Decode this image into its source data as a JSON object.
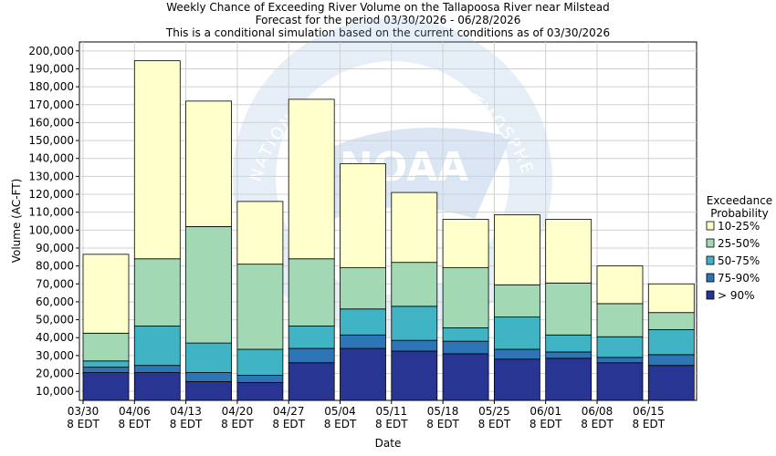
{
  "chart_data": {
    "type": "bar",
    "stacked": true,
    "title": [
      "Weekly Chance of Exceeding River Volume on the Tallapoosa River near Milstead",
      "Forecast for the period 03/30/2026 - 06/28/2026",
      "This is a conditional simulation based on the current conditions as of 03/30/2026"
    ],
    "xlabel": "Date",
    "ylabel": "Volume (AC-FT)",
    "ylim": [
      5000,
      205000
    ],
    "yticks": [
      "10,000",
      "20,000",
      "30,000",
      "40,000",
      "50,000",
      "60,000",
      "70,000",
      "80,000",
      "90,000",
      "100,000",
      "110,000",
      "120,000",
      "130,000",
      "140,000",
      "150,000",
      "160,000",
      "170,000",
      "180,000",
      "190,000",
      "200,000"
    ],
    "xticks": [
      [
        "03/30",
        "8 EDT"
      ],
      [
        "04/06",
        "8 EDT"
      ],
      [
        "04/13",
        "8 EDT"
      ],
      [
        "04/20",
        "8 EDT"
      ],
      [
        "04/27",
        "8 EDT"
      ],
      [
        "05/04",
        "8 EDT"
      ],
      [
        "05/11",
        "8 EDT"
      ],
      [
        "05/18",
        "8 EDT"
      ],
      [
        "05/25",
        "8 EDT"
      ],
      [
        "06/01",
        "8 EDT"
      ],
      [
        "06/08",
        "8 EDT"
      ],
      [
        "06/15",
        "8 EDT"
      ]
    ],
    "legend_title": [
      "Exceedance",
      "Probability"
    ],
    "series": [
      {
        "name": "> 90%",
        "color": "#283593",
        "tops": [
          20500,
          20500,
          15500,
          15000,
          26000,
          34000,
          32500,
          31000,
          28000,
          28500,
          26000,
          24500
        ]
      },
      {
        "name": "75-90%",
        "color": "#2e75b6",
        "tops": [
          23500,
          24500,
          20500,
          19000,
          34000,
          41500,
          38500,
          38000,
          33500,
          32000,
          29000,
          30500
        ]
      },
      {
        "name": "50-75%",
        "color": "#40b3c4",
        "tops": [
          27000,
          46500,
          37000,
          33500,
          46500,
          56000,
          57500,
          45500,
          51500,
          41500,
          40500,
          44500
        ]
      },
      {
        "name": "25-50%",
        "color": "#a2d9b4",
        "tops": [
          42500,
          84000,
          102000,
          81000,
          84000,
          79000,
          82000,
          79000,
          69500,
          70500,
          59000,
          54000
        ]
      },
      {
        "name": "10-25%",
        "color": "#ffffcc",
        "tops": [
          86500,
          194500,
          172000,
          116000,
          173000,
          137000,
          121000,
          106000,
          108500,
          106000,
          80000,
          70000
        ]
      }
    ],
    "legend_order": [
      "10-25%",
      "25-50%",
      "50-75%",
      "75-90%",
      "> 90%"
    ],
    "watermark": "NATIONAL OCEANIC AND ATMOSPHERIC ADMINISTRATION"
  }
}
